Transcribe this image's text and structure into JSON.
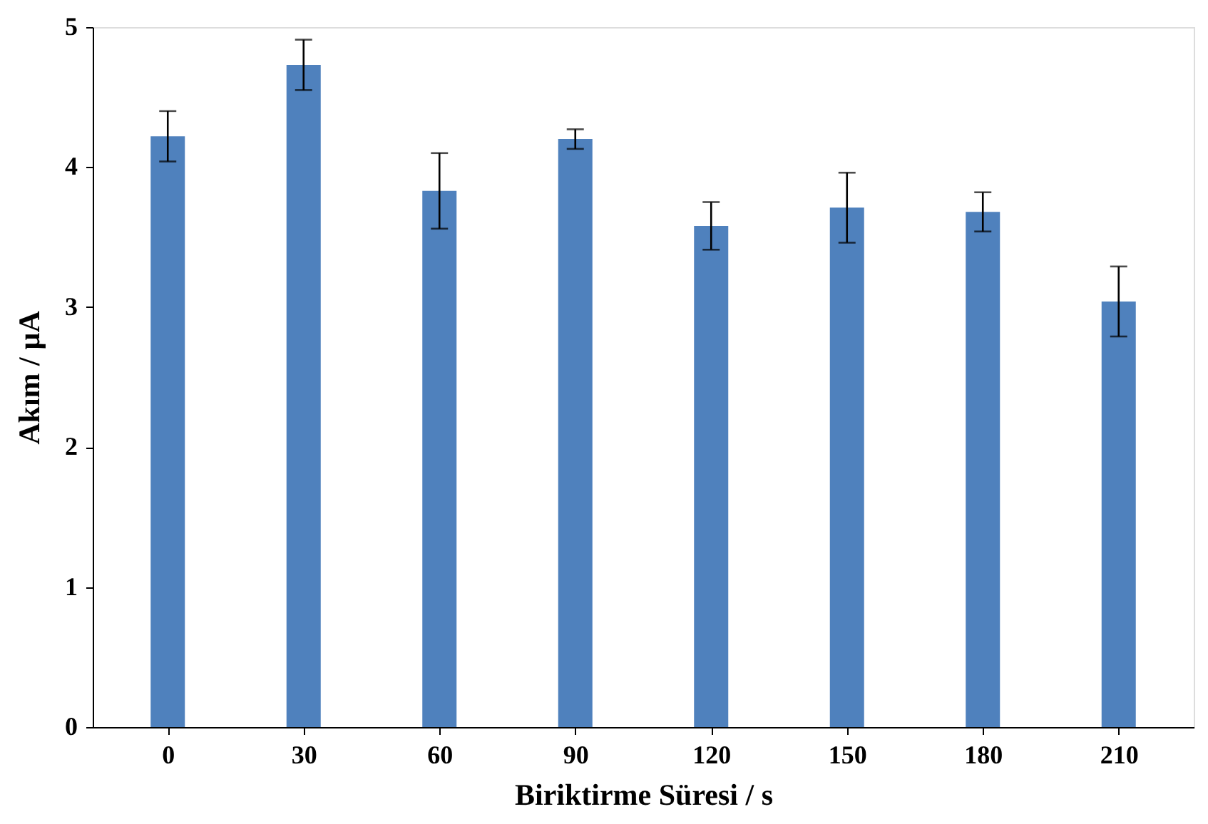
{
  "chart_data": {
    "type": "bar",
    "xlabel": "Biriktirme  Süresi / s",
    "ylabel": "Akım / µA",
    "categories": [
      "0",
      "30",
      "60",
      "90",
      "120",
      "150",
      "180",
      "210"
    ],
    "values": [
      4.22,
      4.73,
      3.83,
      4.2,
      3.58,
      3.71,
      3.68,
      3.04
    ],
    "errors": [
      0.18,
      0.18,
      0.27,
      0.07,
      0.17,
      0.25,
      0.14,
      0.25
    ],
    "color": "#4f81bd",
    "ylim": [
      0,
      5
    ],
    "yticks": [
      0,
      1,
      2,
      3,
      4,
      5
    ],
    "grid": false
  }
}
